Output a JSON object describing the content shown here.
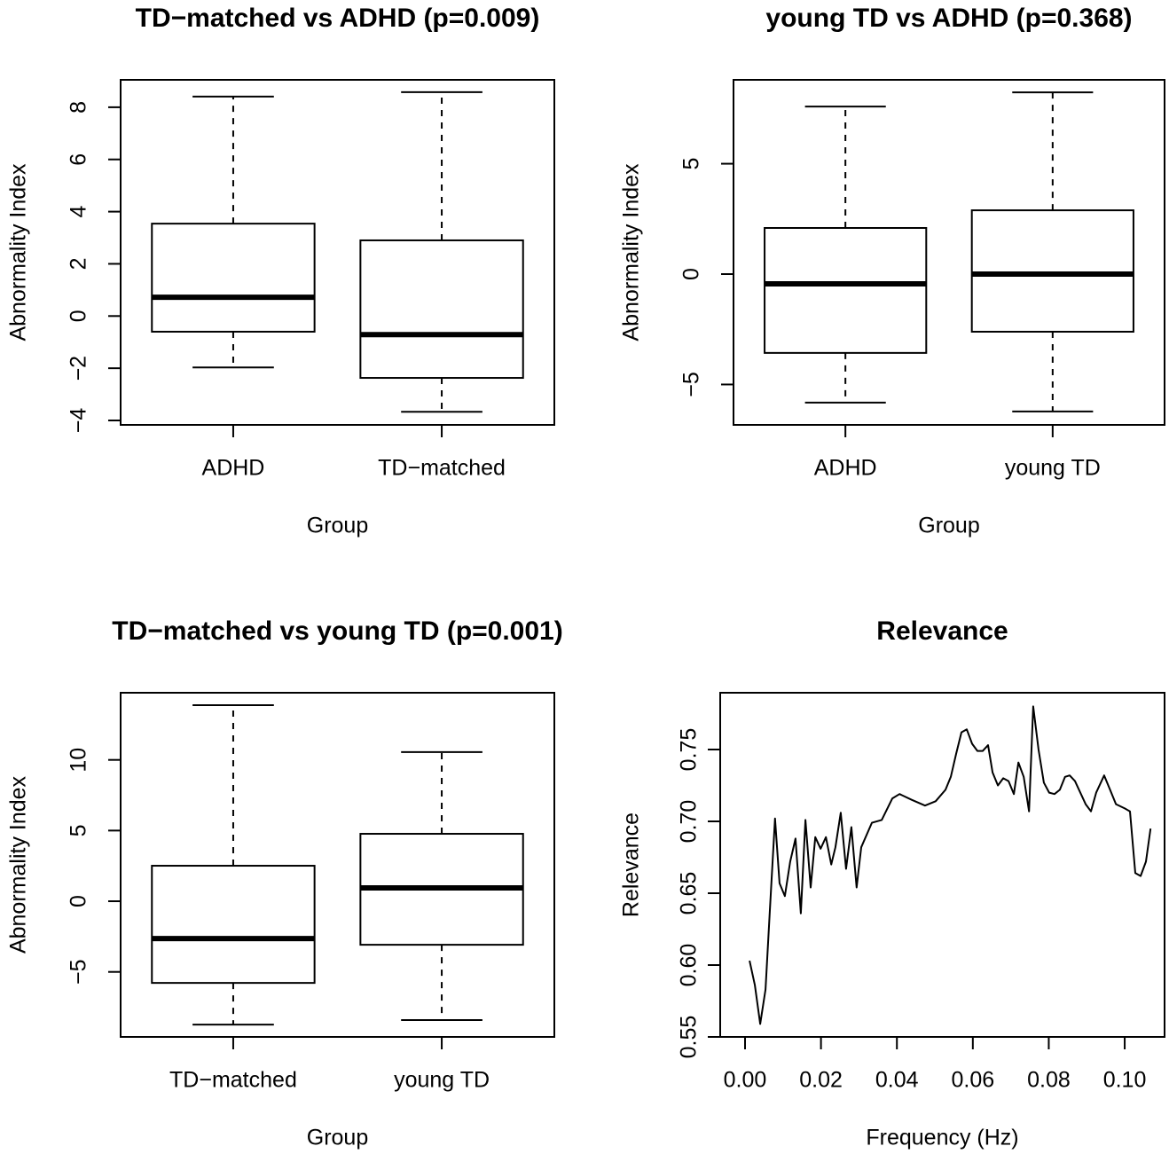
{
  "chart_data": [
    {
      "type": "boxplot",
      "title": "TD−matched vs ADHD (p=0.009)",
      "x_label": "Group",
      "y_label": "Abnormality Index",
      "categories": [
        "ADHD",
        "TD−matched"
      ],
      "min": [
        -1.97,
        -3.67
      ],
      "q1": [
        -0.6,
        -2.37
      ],
      "median": [
        0.72,
        -0.71
      ],
      "q3": [
        3.54,
        2.9
      ],
      "max": [
        8.41,
        8.58
      ],
      "color": "#000000",
      "ylim": [
        -4.17,
        9.05
      ],
      "yticks": [
        {
          "value": -4,
          "label": "−4"
        },
        {
          "value": -2,
          "label": "−2"
        },
        0,
        2,
        4,
        6,
        8
      ]
    },
    {
      "type": "boxplot",
      "title": "young TD vs ADHD (p=0.368)",
      "x_label": "Group",
      "y_label": "Abnormality Index",
      "categories": [
        "ADHD",
        "young TD"
      ],
      "min": [
        -5.82,
        -6.22
      ],
      "q1": [
        -3.57,
        -2.61
      ],
      "median": [
        -0.44,
        0
      ],
      "q3": [
        2.09,
        2.89
      ],
      "max": [
        7.59,
        8.23
      ],
      "color": "#000000",
      "ylim": [
        -6.83,
        8.8
      ],
      "yticks": [
        {
          "value": -5,
          "label": "−5"
        },
        0,
        5
      ]
    },
    {
      "type": "boxplot",
      "title": "TD−matched vs young TD (p=0.001)",
      "x_label": "Group",
      "y_label": "Abnormality Index",
      "categories": [
        "TD−matched",
        "young TD"
      ],
      "min": [
        -8.73,
        -8.41
      ],
      "q1": [
        -5.78,
        -3.08
      ],
      "median": [
        -2.64,
        0.94
      ],
      "q3": [
        2.51,
        4.77
      ],
      "max": [
        13.87,
        10.55
      ],
      "color": "#000000",
      "ylim": [
        -9.6,
        14.75
      ],
      "yticks": [
        {
          "value": -5,
          "label": "−5"
        },
        0,
        5,
        10
      ]
    },
    {
      "type": "line",
      "title": "Relevance",
      "x_label": "Frequency (Hz)",
      "y_label": "Relevance",
      "color": "#000000",
      "x": [
        0.0012,
        0.0026,
        0.004,
        0.0054,
        0.0065,
        0.0079,
        0.0091,
        0.0105,
        0.0119,
        0.0133,
        0.0147,
        0.0159,
        0.0173,
        0.0185,
        0.0199,
        0.0213,
        0.0227,
        0.0238,
        0.0252,
        0.0266,
        0.028,
        0.0294,
        0.0306,
        0.0334,
        0.036,
        0.0388,
        0.0407,
        0.0439,
        0.0474,
        0.0502,
        0.0528,
        0.0542,
        0.0556,
        0.057,
        0.0584,
        0.0598,
        0.0612,
        0.0626,
        0.064,
        0.0652,
        0.0666,
        0.068,
        0.0694,
        0.0708,
        0.072,
        0.0734,
        0.0748,
        0.0759,
        0.0773,
        0.0787,
        0.0801,
        0.0815,
        0.0829,
        0.0843,
        0.0855,
        0.0869,
        0.0883,
        0.0897,
        0.0911,
        0.0925,
        0.0946,
        0.096,
        0.0977,
        0.1,
        0.1014,
        0.1028,
        0.1042,
        0.1056,
        0.1068
      ],
      "values": [
        0.603,
        0.586,
        0.559,
        0.583,
        0.636,
        0.702,
        0.657,
        0.648,
        0.672,
        0.688,
        0.636,
        0.701,
        0.654,
        0.689,
        0.681,
        0.689,
        0.67,
        0.682,
        0.706,
        0.667,
        0.696,
        0.654,
        0.682,
        0.699,
        0.701,
        0.716,
        0.719,
        0.715,
        0.711,
        0.714,
        0.722,
        0.731,
        0.747,
        0.762,
        0.764,
        0.754,
        0.749,
        0.749,
        0.753,
        0.734,
        0.725,
        0.73,
        0.728,
        0.719,
        0.741,
        0.731,
        0.707,
        0.78,
        0.75,
        0.727,
        0.72,
        0.719,
        0.722,
        0.731,
        0.732,
        0.728,
        0.72,
        0.712,
        0.707,
        0.72,
        0.732,
        0.723,
        0.712,
        0.709,
        0.707,
        0.664,
        0.662,
        0.672,
        0.695
      ],
      "xlim": [
        -0.00654,
        0.1105
      ],
      "ylim": [
        0.55,
        0.7895
      ],
      "xticks": [
        {
          "value": 0,
          "label": "0.00"
        },
        0.02,
        0.04,
        0.06,
        0.08,
        {
          "value": 0.1,
          "label": "0.10"
        }
      ],
      "yticks": [
        0.55,
        {
          "value": 0.6,
          "label": "0.60"
        },
        0.65,
        {
          "value": 0.7,
          "label": "0.70"
        },
        0.75
      ]
    }
  ]
}
